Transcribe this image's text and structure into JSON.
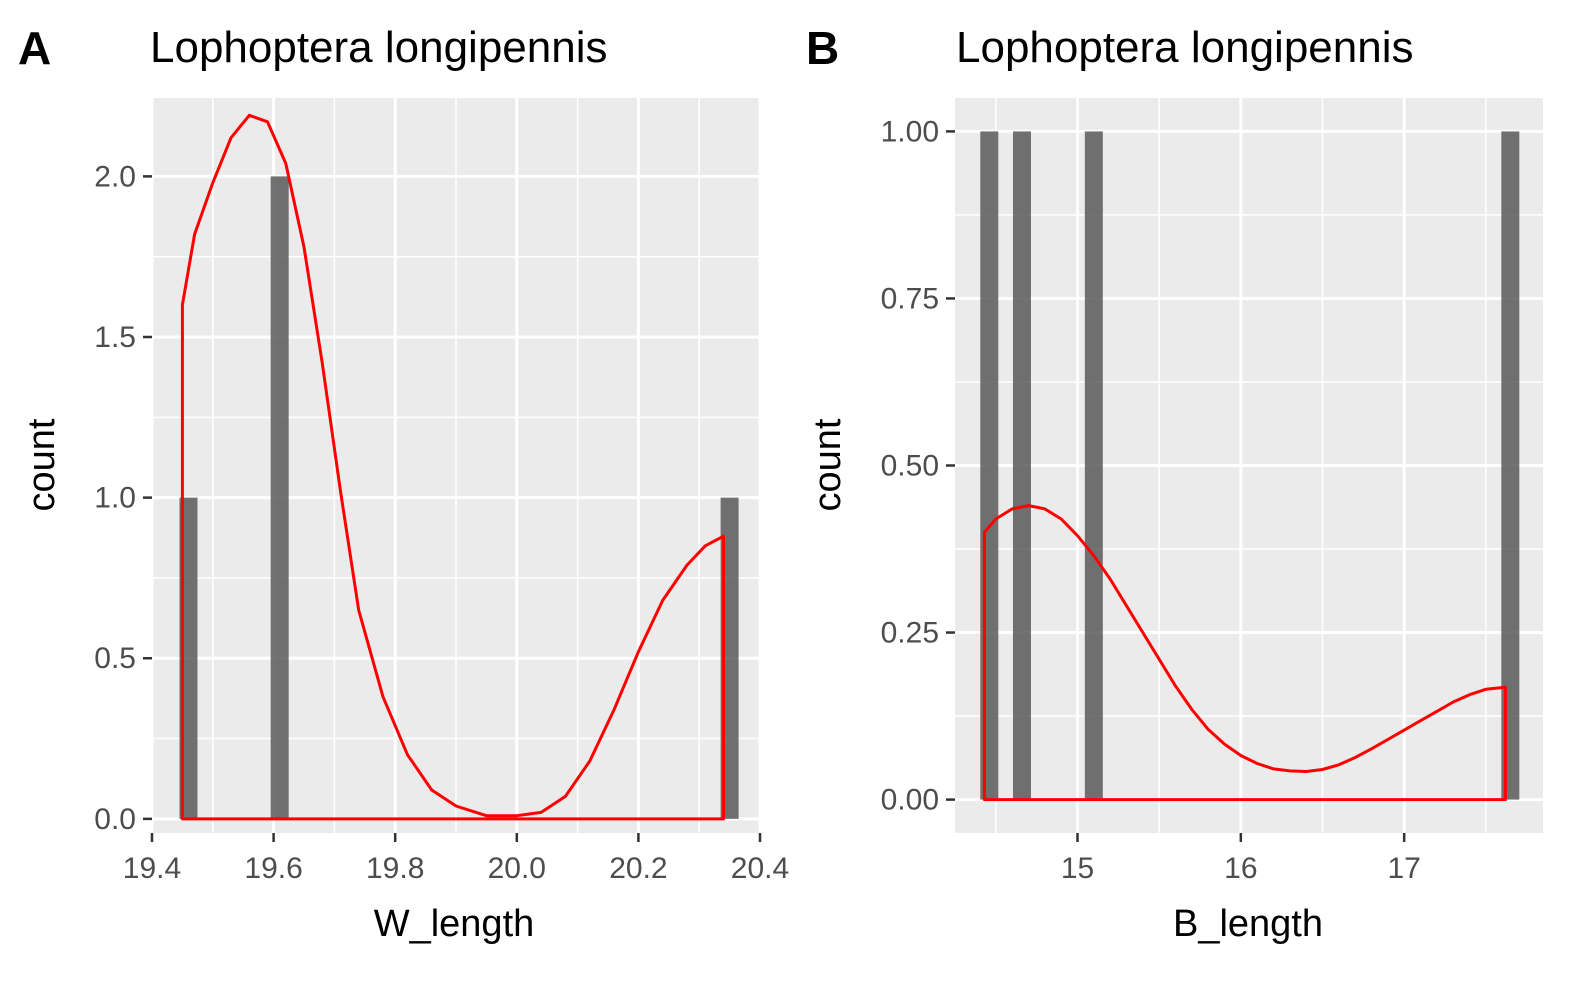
{
  "chart_data": [
    {
      "panel_tag": "A",
      "type": "bar",
      "title": "Lophoptera longipennis",
      "xlabel": "W_length",
      "ylabel": "count",
      "xlim": [
        19.4,
        20.4
      ],
      "ylim": [
        0,
        2.2
      ],
      "x_ticks": [
        19.4,
        19.6,
        19.8,
        20.0,
        20.2,
        20.4
      ],
      "x_tick_labels": [
        "19.4",
        "19.6",
        "19.8",
        "20.0",
        "20.2",
        "20.4"
      ],
      "y_ticks": [
        0,
        0.5,
        1.0,
        1.5,
        2.0
      ],
      "y_tick_labels": [
        "0.0",
        "0.5",
        "1.0",
        "1.5",
        "2.0"
      ],
      "bars": [
        {
          "x": 19.46,
          "count": 1
        },
        {
          "x": 19.61,
          "count": 2
        },
        {
          "x": 20.35,
          "count": 1
        }
      ],
      "density_curve": {
        "color": "#ff0000",
        "x_range": [
          19.45,
          20.34
        ],
        "points": [
          [
            19.45,
            1.6
          ],
          [
            19.47,
            1.82
          ],
          [
            19.5,
            1.98
          ],
          [
            19.53,
            2.12
          ],
          [
            19.56,
            2.19
          ],
          [
            19.59,
            2.17
          ],
          [
            19.62,
            2.04
          ],
          [
            19.65,
            1.78
          ],
          [
            19.68,
            1.42
          ],
          [
            19.71,
            1.02
          ],
          [
            19.74,
            0.65
          ],
          [
            19.78,
            0.38
          ],
          [
            19.82,
            0.2
          ],
          [
            19.86,
            0.09
          ],
          [
            19.9,
            0.04
          ],
          [
            19.95,
            0.01
          ],
          [
            20.0,
            0.01
          ],
          [
            20.04,
            0.02
          ],
          [
            20.08,
            0.07
          ],
          [
            20.12,
            0.18
          ],
          [
            20.16,
            0.34
          ],
          [
            20.2,
            0.52
          ],
          [
            20.24,
            0.68
          ],
          [
            20.28,
            0.79
          ],
          [
            20.31,
            0.85
          ],
          [
            20.34,
            0.88
          ]
        ]
      },
      "bar_color": "#595959",
      "panel_background": "#ebebeb"
    },
    {
      "panel_tag": "B",
      "type": "bar",
      "title": "Lophoptera longipennis",
      "xlabel": "B_length",
      "ylabel": "count",
      "xlim": [
        14.25,
        17.85
      ],
      "ylim": [
        0,
        1.0
      ],
      "x_ticks": [
        15,
        16,
        17
      ],
      "x_tick_labels": [
        "15",
        "16",
        "17"
      ],
      "y_ticks": [
        0,
        0.25,
        0.5,
        0.75,
        1.0
      ],
      "y_tick_labels": [
        "0.00",
        "0.25",
        "0.50",
        "0.75",
        "1.00"
      ],
      "bars": [
        {
          "x": 14.46,
          "count": 1
        },
        {
          "x": 14.66,
          "count": 1
        },
        {
          "x": 15.1,
          "count": 1
        },
        {
          "x": 17.65,
          "count": 1
        }
      ],
      "density_curve": {
        "color": "#ff0000",
        "x_range": [
          14.43,
          17.62
        ],
        "points": [
          [
            14.43,
            0.4
          ],
          [
            14.5,
            0.42
          ],
          [
            14.6,
            0.435
          ],
          [
            14.7,
            0.44
          ],
          [
            14.8,
            0.435
          ],
          [
            14.9,
            0.42
          ],
          [
            15.0,
            0.395
          ],
          [
            15.1,
            0.365
          ],
          [
            15.2,
            0.33
          ],
          [
            15.3,
            0.29
          ],
          [
            15.4,
            0.25
          ],
          [
            15.5,
            0.21
          ],
          [
            15.6,
            0.17
          ],
          [
            15.7,
            0.135
          ],
          [
            15.8,
            0.105
          ],
          [
            15.9,
            0.083
          ],
          [
            16.0,
            0.066
          ],
          [
            16.1,
            0.054
          ],
          [
            16.2,
            0.046
          ],
          [
            16.3,
            0.043
          ],
          [
            16.4,
            0.042
          ],
          [
            16.5,
            0.045
          ],
          [
            16.6,
            0.052
          ],
          [
            16.7,
            0.063
          ],
          [
            16.8,
            0.076
          ],
          [
            16.9,
            0.09
          ],
          [
            17.0,
            0.104
          ],
          [
            17.1,
            0.118
          ],
          [
            17.2,
            0.132
          ],
          [
            17.3,
            0.146
          ],
          [
            17.4,
            0.157
          ],
          [
            17.5,
            0.165
          ],
          [
            17.62,
            0.168
          ]
        ]
      },
      "bar_color": "#595959",
      "panel_background": "#ebebeb"
    }
  ]
}
